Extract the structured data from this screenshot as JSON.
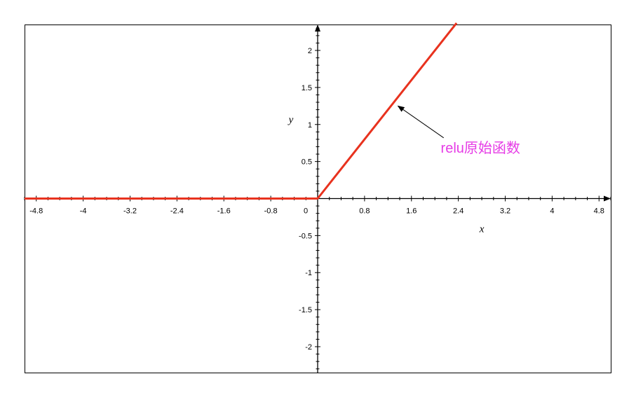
{
  "chart_data": {
    "type": "line",
    "title": "",
    "xlabel": "x",
    "ylabel": "y",
    "xlim": [
      -5.0,
      5.0
    ],
    "ylim": [
      -2.35,
      2.35
    ],
    "x_ticks": [
      -4.8,
      -4,
      -3.2,
      -2.4,
      -1.6,
      -0.8,
      0,
      0.8,
      1.6,
      2.4,
      3.2,
      4,
      4.8
    ],
    "x_tick_labels": [
      "-4.8",
      "-4",
      "-3.2",
      "-2.4",
      "-1.6",
      "-0.8",
      "0",
      "0.8",
      "1.6",
      "2.4",
      "3.2",
      "4",
      "4.8"
    ],
    "y_ticks": [
      -2,
      -1.5,
      -1,
      -0.5,
      0.5,
      1,
      1.5,
      2
    ],
    "y_tick_labels": [
      "-2",
      "-1.5",
      "-1",
      "-0.5",
      "0.5",
      "1",
      "1.5",
      "2"
    ],
    "minor_tick_step": 0.2,
    "grid": false,
    "series": [
      {
        "x": [
          -5.0,
          0,
          2.37
        ],
        "y": [
          0,
          0,
          2.37
        ],
        "color": "#e8321e"
      }
    ],
    "annotations": [
      {
        "text": "relu原始函数",
        "text_anchor": [
          2.1,
          0.62
        ],
        "arrow_from": [
          2.15,
          0.82
        ],
        "arrow_to": [
          1.37,
          1.25
        ],
        "color": "#e63ce6"
      }
    ]
  }
}
